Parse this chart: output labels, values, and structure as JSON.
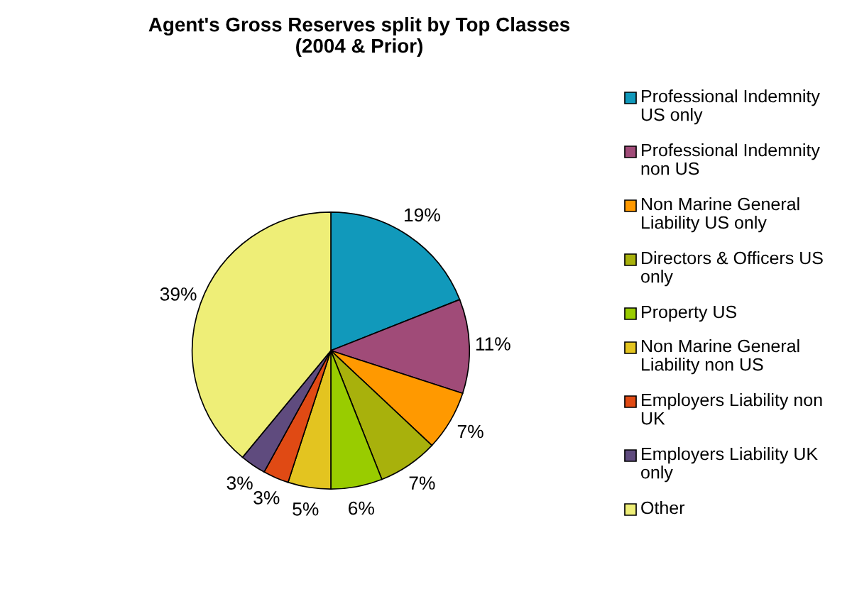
{
  "chart_data": {
    "type": "pie",
    "title": "Agent's Gross Reserves split by Top Classes\n(2004 & Prior)",
    "categories": [
      "Professional Indemnity US only",
      "Professional Indemnity non US",
      "Non Marine General Liability US only",
      "Directors & Officers US only",
      "Property US",
      "Non Marine General Liability non US",
      "Employers Liability non UK",
      "Employers Liability UK only",
      "Other"
    ],
    "values": [
      19,
      11,
      7,
      7,
      6,
      5,
      3,
      3,
      39
    ],
    "colors": [
      "#1199bb",
      "#a04b78",
      "#ff9900",
      "#a8b10c",
      "#99cc00",
      "#e3c420",
      "#e04a14",
      "#5f4b7e",
      "#eeee77"
    ],
    "value_labels": [
      "19%",
      "11%",
      "7%",
      "7%",
      "6%",
      "5%",
      "3%",
      "3%",
      "39%"
    ],
    "legend": "right"
  }
}
